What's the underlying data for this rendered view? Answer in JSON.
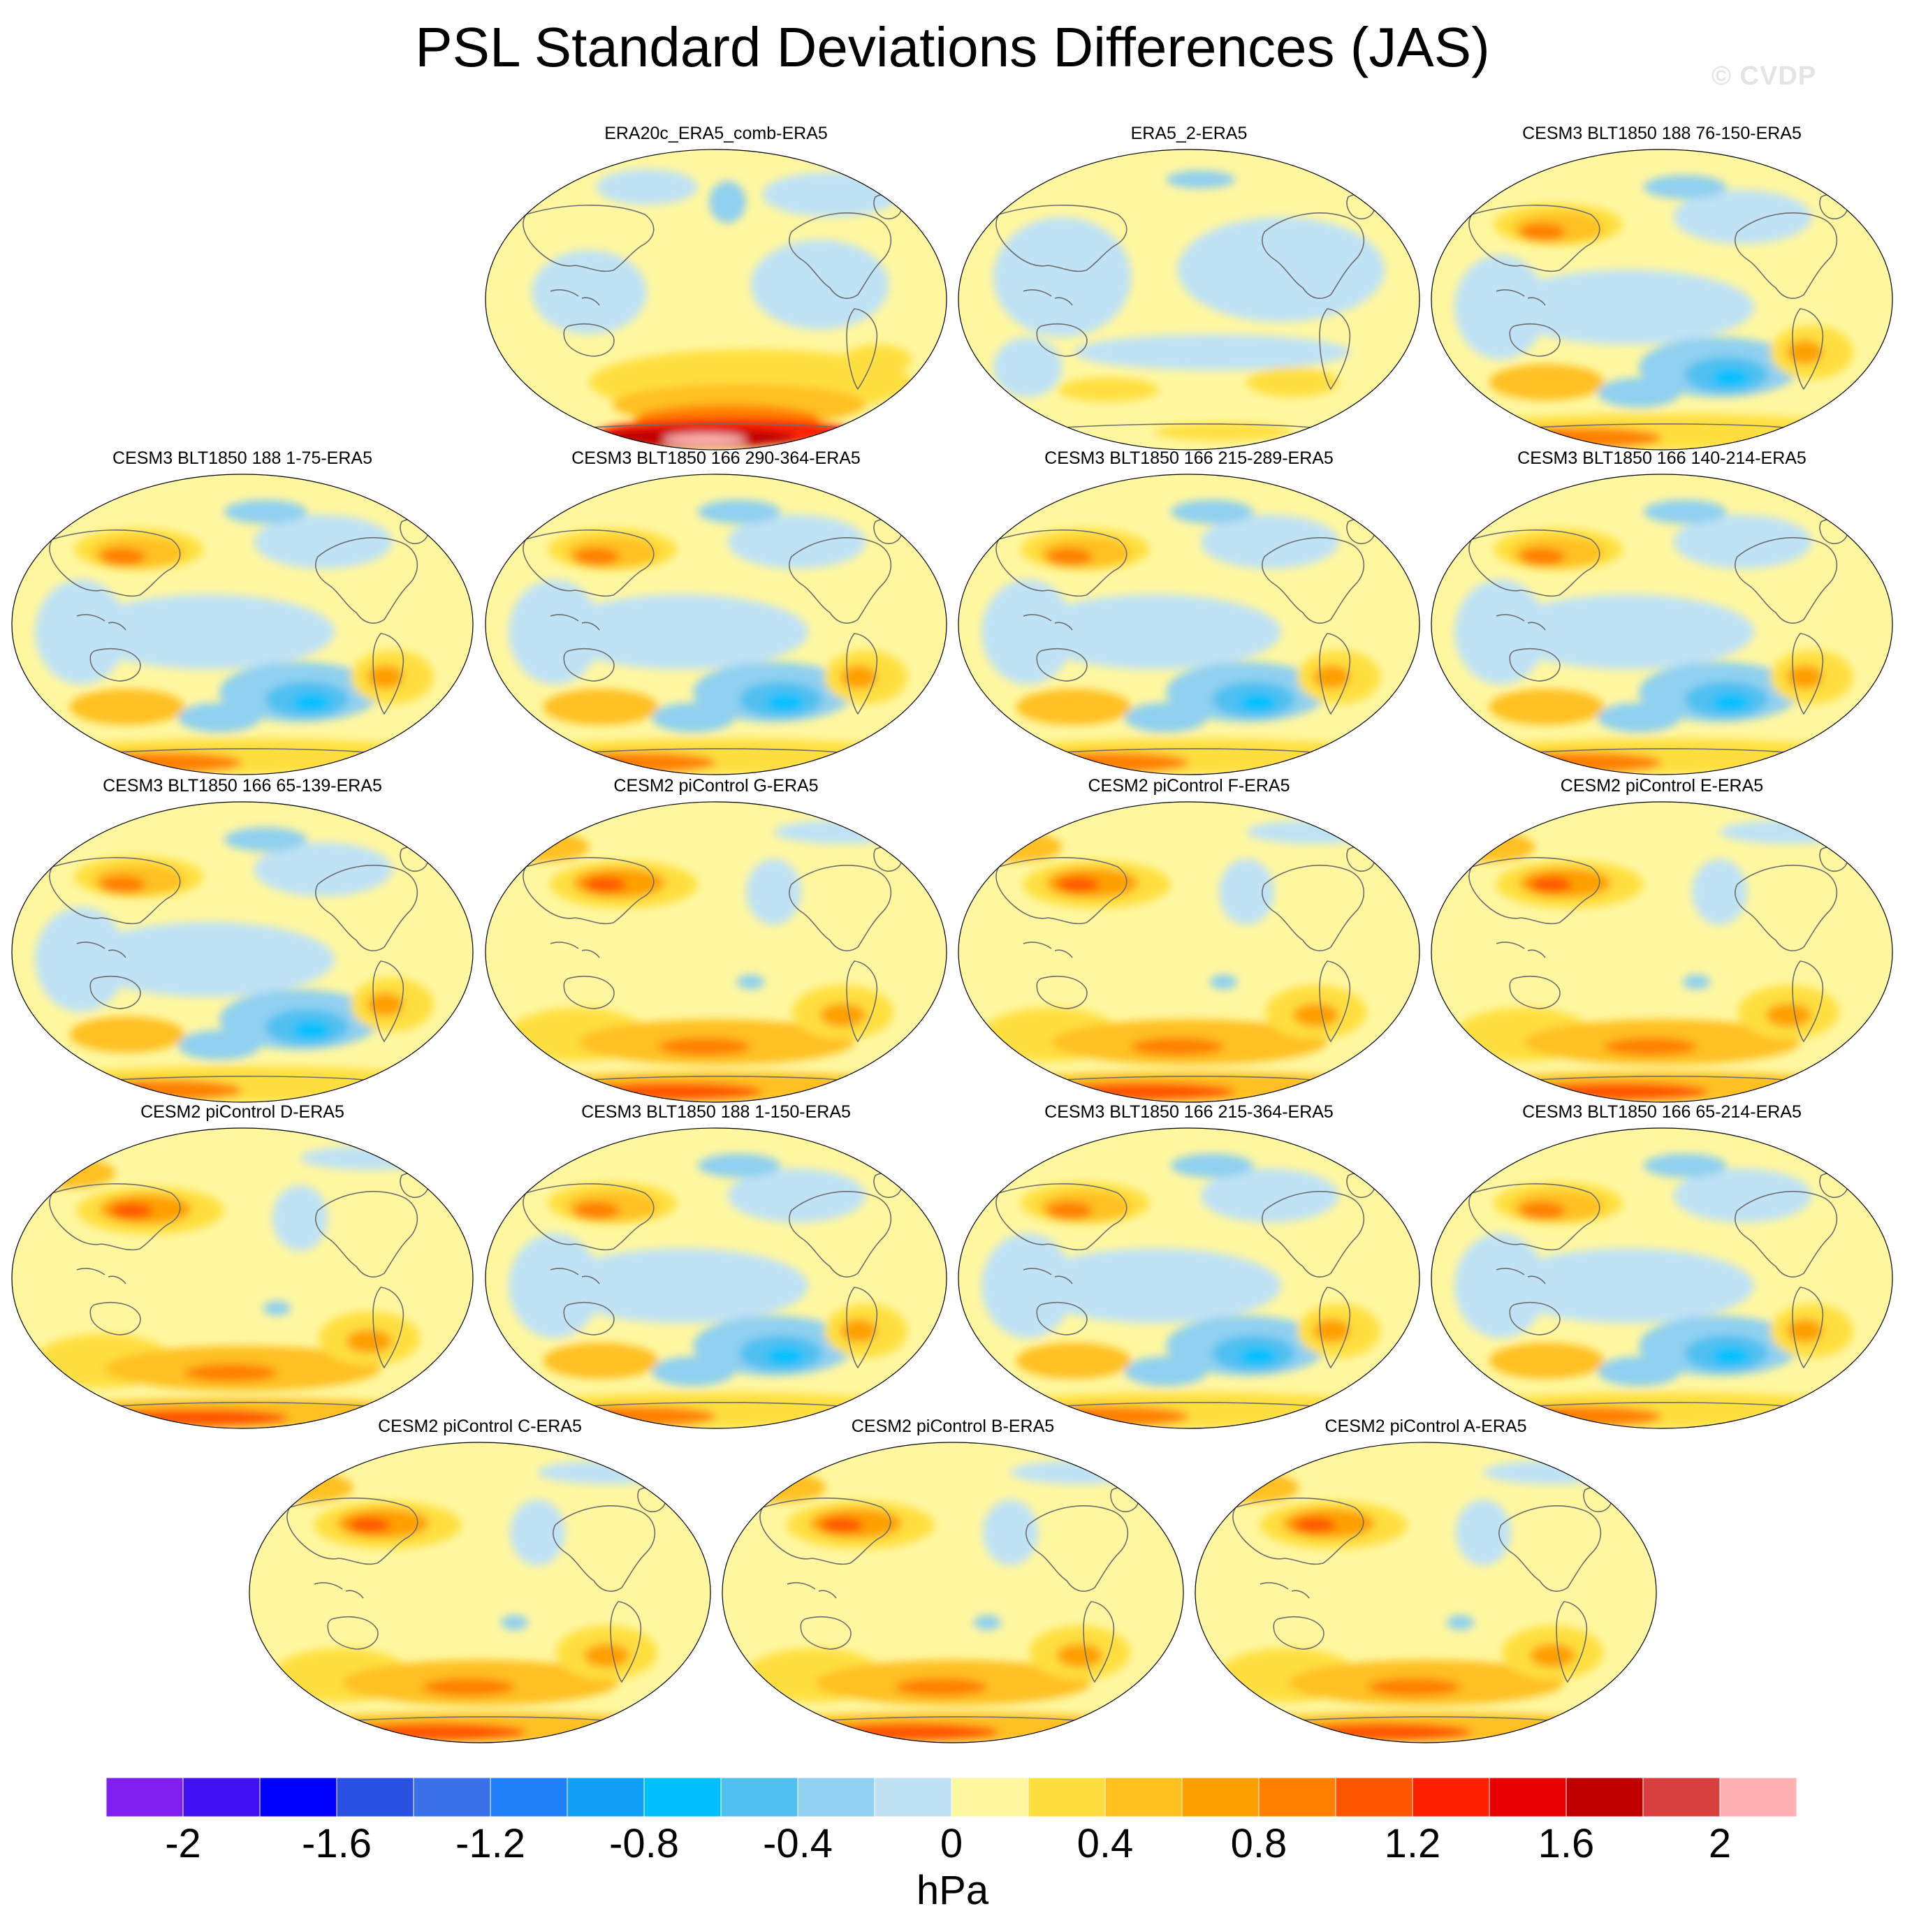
{
  "title": "PSL Standard Deviations Differences (JAS)",
  "watermark": "© CVDP",
  "colors": {
    "palette": [
      "#8020f0",
      "#4010f0",
      "#0000ff",
      "#2a50e4",
      "#3a70e8",
      "#2080f8",
      "#10a0f8",
      "#00c0ff",
      "#50c0f0",
      "#90d0f0",
      "#bfe2f5",
      "#fff7a0",
      "#ffdf40",
      "#ffc020",
      "#ffa000",
      "#ff8000",
      "#ff5400",
      "#ff2000",
      "#e80000",
      "#c00000",
      "#d84040",
      "#ffb0b0"
    ],
    "coastline": "#6d6d6d"
  },
  "panels": [
    {
      "title": "ERA20c_ERA5_comb-ERA5",
      "pattern": "era20c"
    },
    {
      "title": "ERA5_2-ERA5",
      "pattern": "era5"
    },
    {
      "title": "CESM3 BLT1850 188 76-150-ERA5",
      "pattern": "cesm3"
    },
    {
      "title": "CESM3 BLT1850 188 1-75-ERA5",
      "pattern": "cesm3"
    },
    {
      "title": "CESM3 BLT1850 166 290-364-ERA5",
      "pattern": "cesm3"
    },
    {
      "title": "CESM3 BLT1850 166 215-289-ERA5",
      "pattern": "cesm3"
    },
    {
      "title": "CESM3 BLT1850 166 140-214-ERA5",
      "pattern": "cesm3"
    },
    {
      "title": "CESM3 BLT1850 166 65-139-ERA5",
      "pattern": "cesm3"
    },
    {
      "title": "CESM2 piControl G-ERA5",
      "pattern": "cesm2"
    },
    {
      "title": "CESM2 piControl F-ERA5",
      "pattern": "cesm2"
    },
    {
      "title": "CESM2 piControl E-ERA5",
      "pattern": "cesm2"
    },
    {
      "title": "CESM2 piControl D-ERA5",
      "pattern": "cesm2"
    },
    {
      "title": "CESM3 BLT1850 188 1-150-ERA5",
      "pattern": "cesm3"
    },
    {
      "title": "CESM3 BLT1850 166 215-364-ERA5",
      "pattern": "cesm3"
    },
    {
      "title": "CESM3 BLT1850 166 65-214-ERA5",
      "pattern": "cesm3"
    },
    {
      "title": "CESM2 piControl C-ERA5",
      "pattern": "cesm2"
    },
    {
      "title": "CESM2 piControl B-ERA5",
      "pattern": "cesm2"
    },
    {
      "title": "CESM2 piControl A-ERA5",
      "pattern": "cesm2"
    }
  ],
  "colorbar": {
    "tick_labels": [
      "-2",
      "-1.6",
      "-1.2",
      "-0.8",
      "-0.4",
      "0",
      "0.4",
      "0.8",
      "1.2",
      "1.6",
      "2"
    ],
    "units": "hPa"
  }
}
